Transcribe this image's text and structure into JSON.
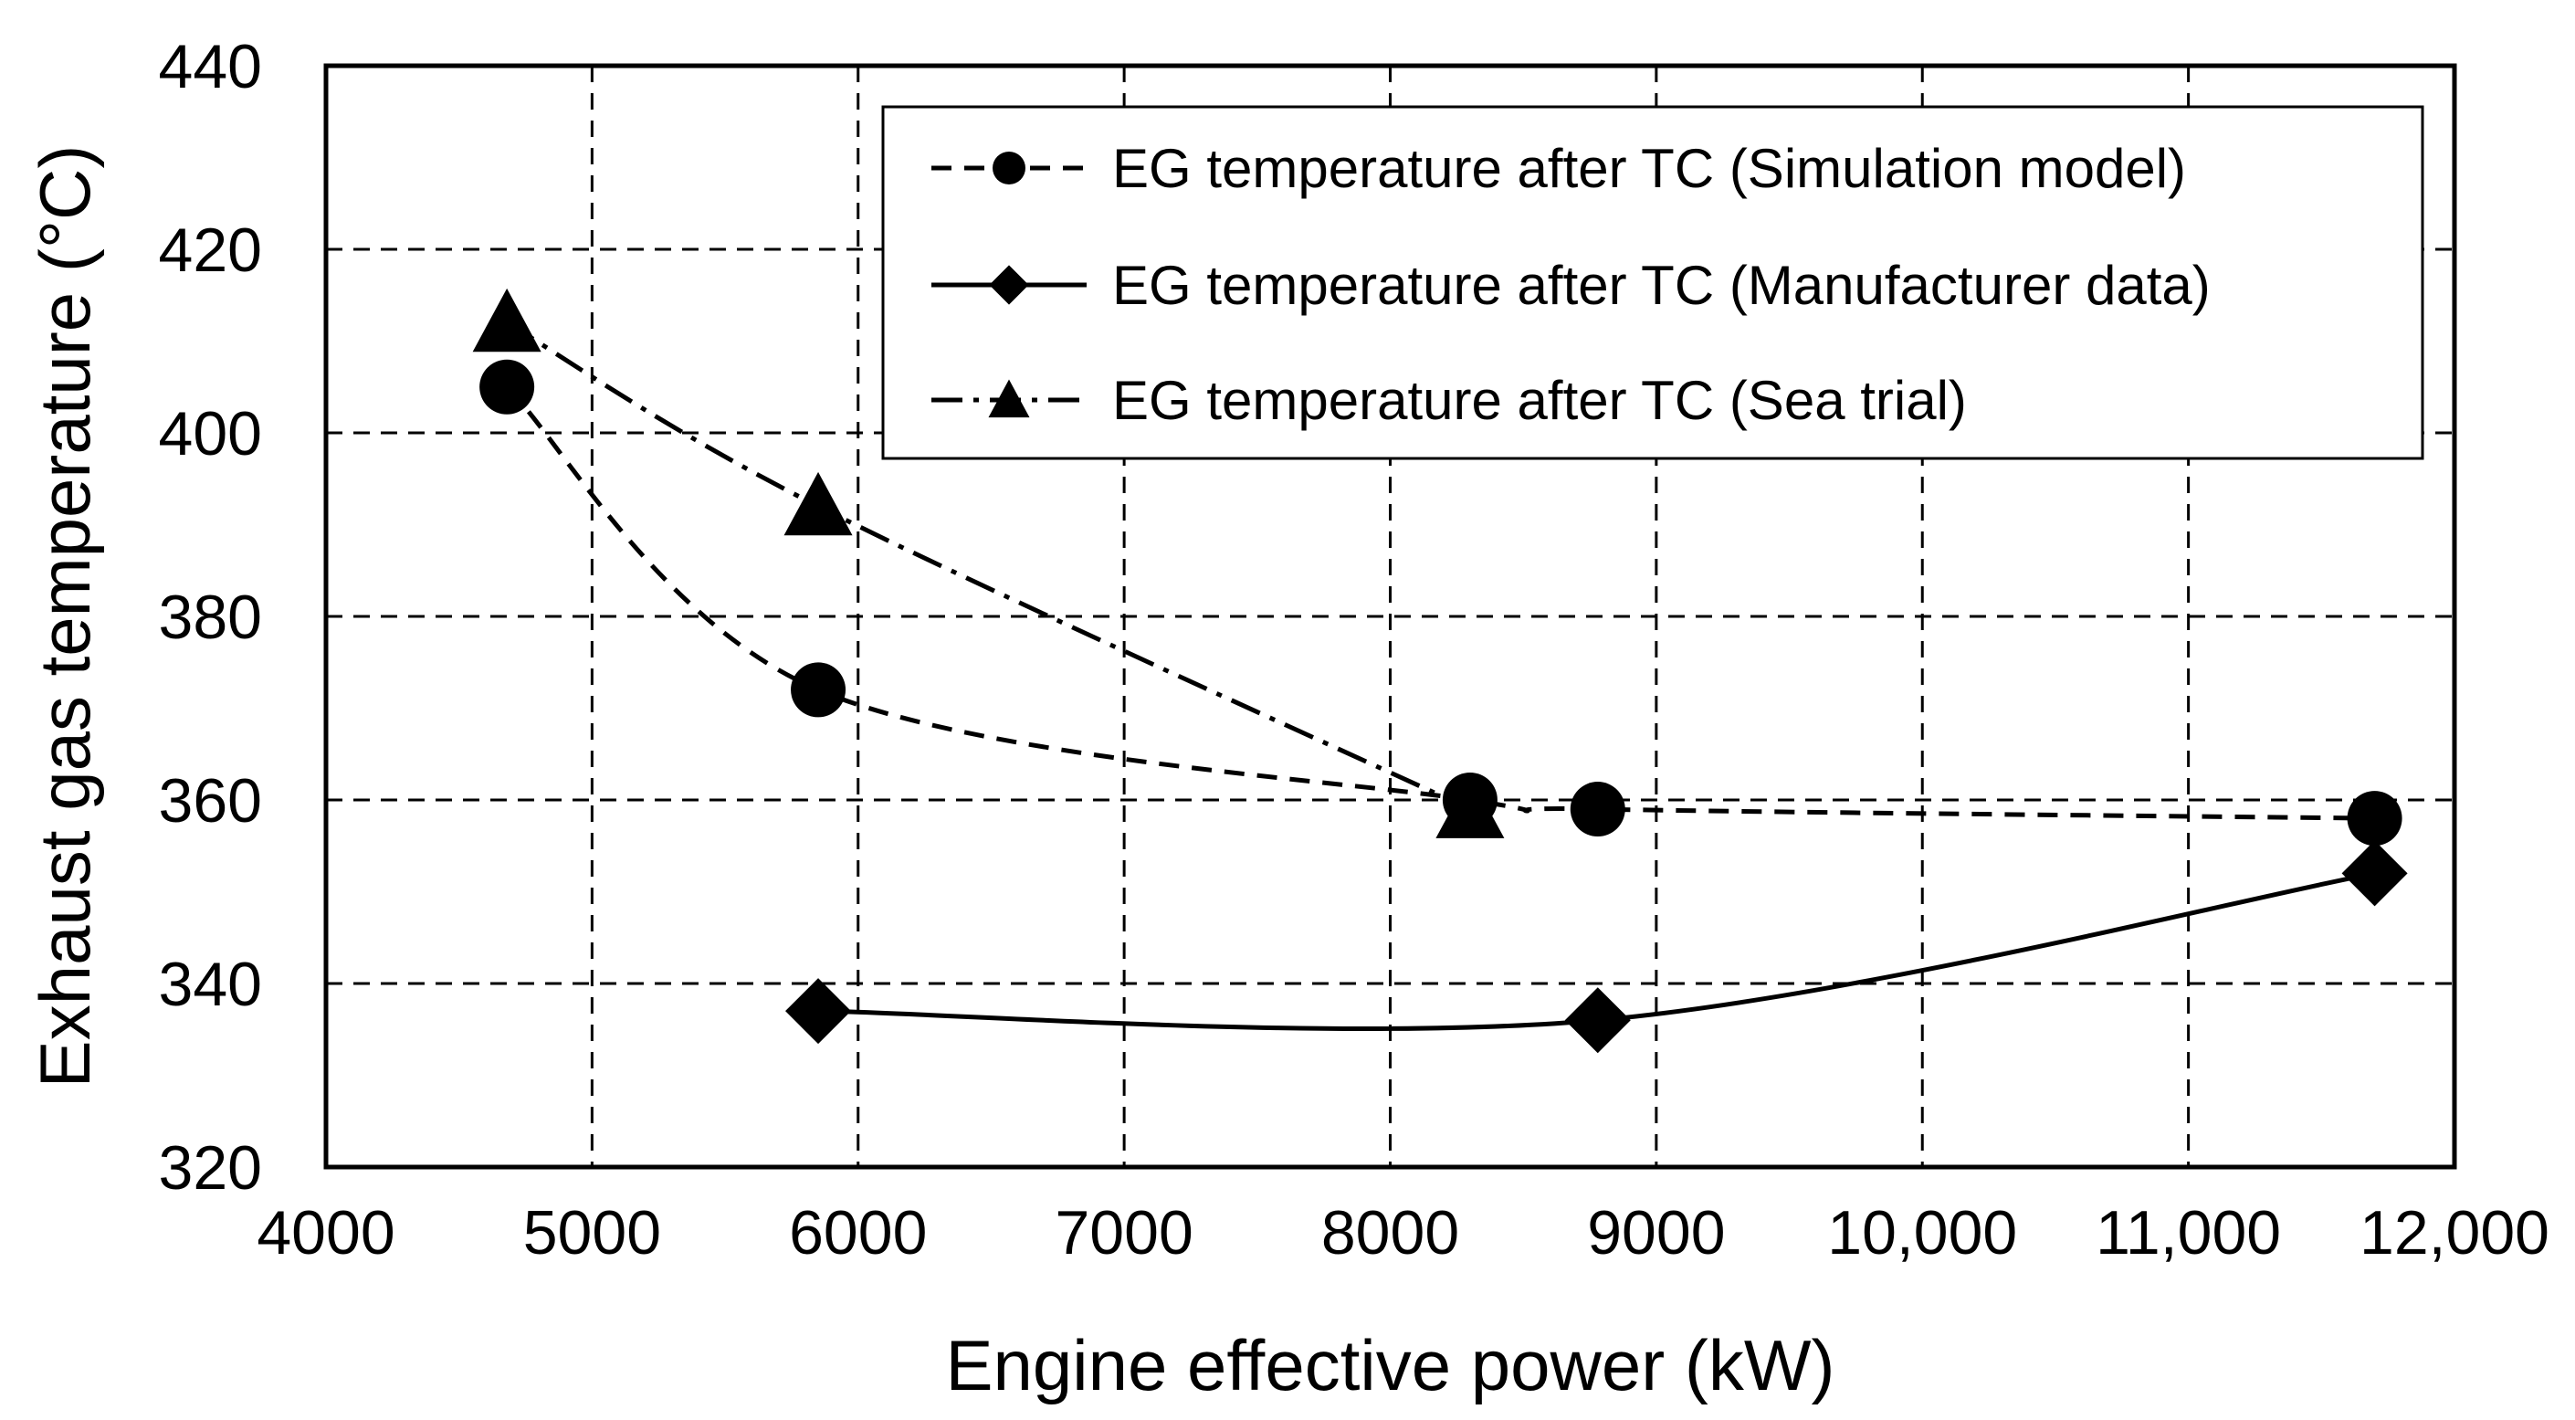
{
  "chart_data": {
    "type": "line",
    "title": "",
    "xlabel": "Engine effective power (kW)",
    "ylabel": "Exhaust gas temperature (°C)",
    "xlim": [
      4000,
      12000
    ],
    "ylim": [
      320,
      440
    ],
    "x_ticks": [
      4000,
      5000,
      6000,
      7000,
      8000,
      9000,
      10000,
      11000,
      12000
    ],
    "x_tick_labels": [
      "4000",
      "5000",
      "6000",
      "7000",
      "8000",
      "9000",
      "10,000",
      "11,000",
      "12,000"
    ],
    "y_ticks": [
      320,
      340,
      360,
      380,
      400,
      420,
      440
    ],
    "y_tick_labels": [
      "320",
      "340",
      "360",
      "380",
      "400",
      "420",
      "440"
    ],
    "grid": true,
    "legend_position": "top-right",
    "series": [
      {
        "name": "EG temperature after TC (Simulation model)",
        "marker": "circle",
        "line_style": "dashed",
        "x": [
          4680,
          5850,
          8300,
          8780,
          11700
        ],
        "y": [
          405,
          372,
          360,
          359,
          358
        ]
      },
      {
        "name": "EG temperature after TC (Manufacturer data)",
        "marker": "diamond",
        "line_style": "solid",
        "x": [
          5850,
          8780,
          11700
        ],
        "y": [
          337,
          336,
          352
        ]
      },
      {
        "name": "EG temperature after TC (Sea trial)",
        "marker": "triangle",
        "line_style": "dash-dot",
        "x": [
          4680,
          5850,
          8300
        ],
        "y": [
          412,
          392,
          359
        ]
      }
    ]
  }
}
